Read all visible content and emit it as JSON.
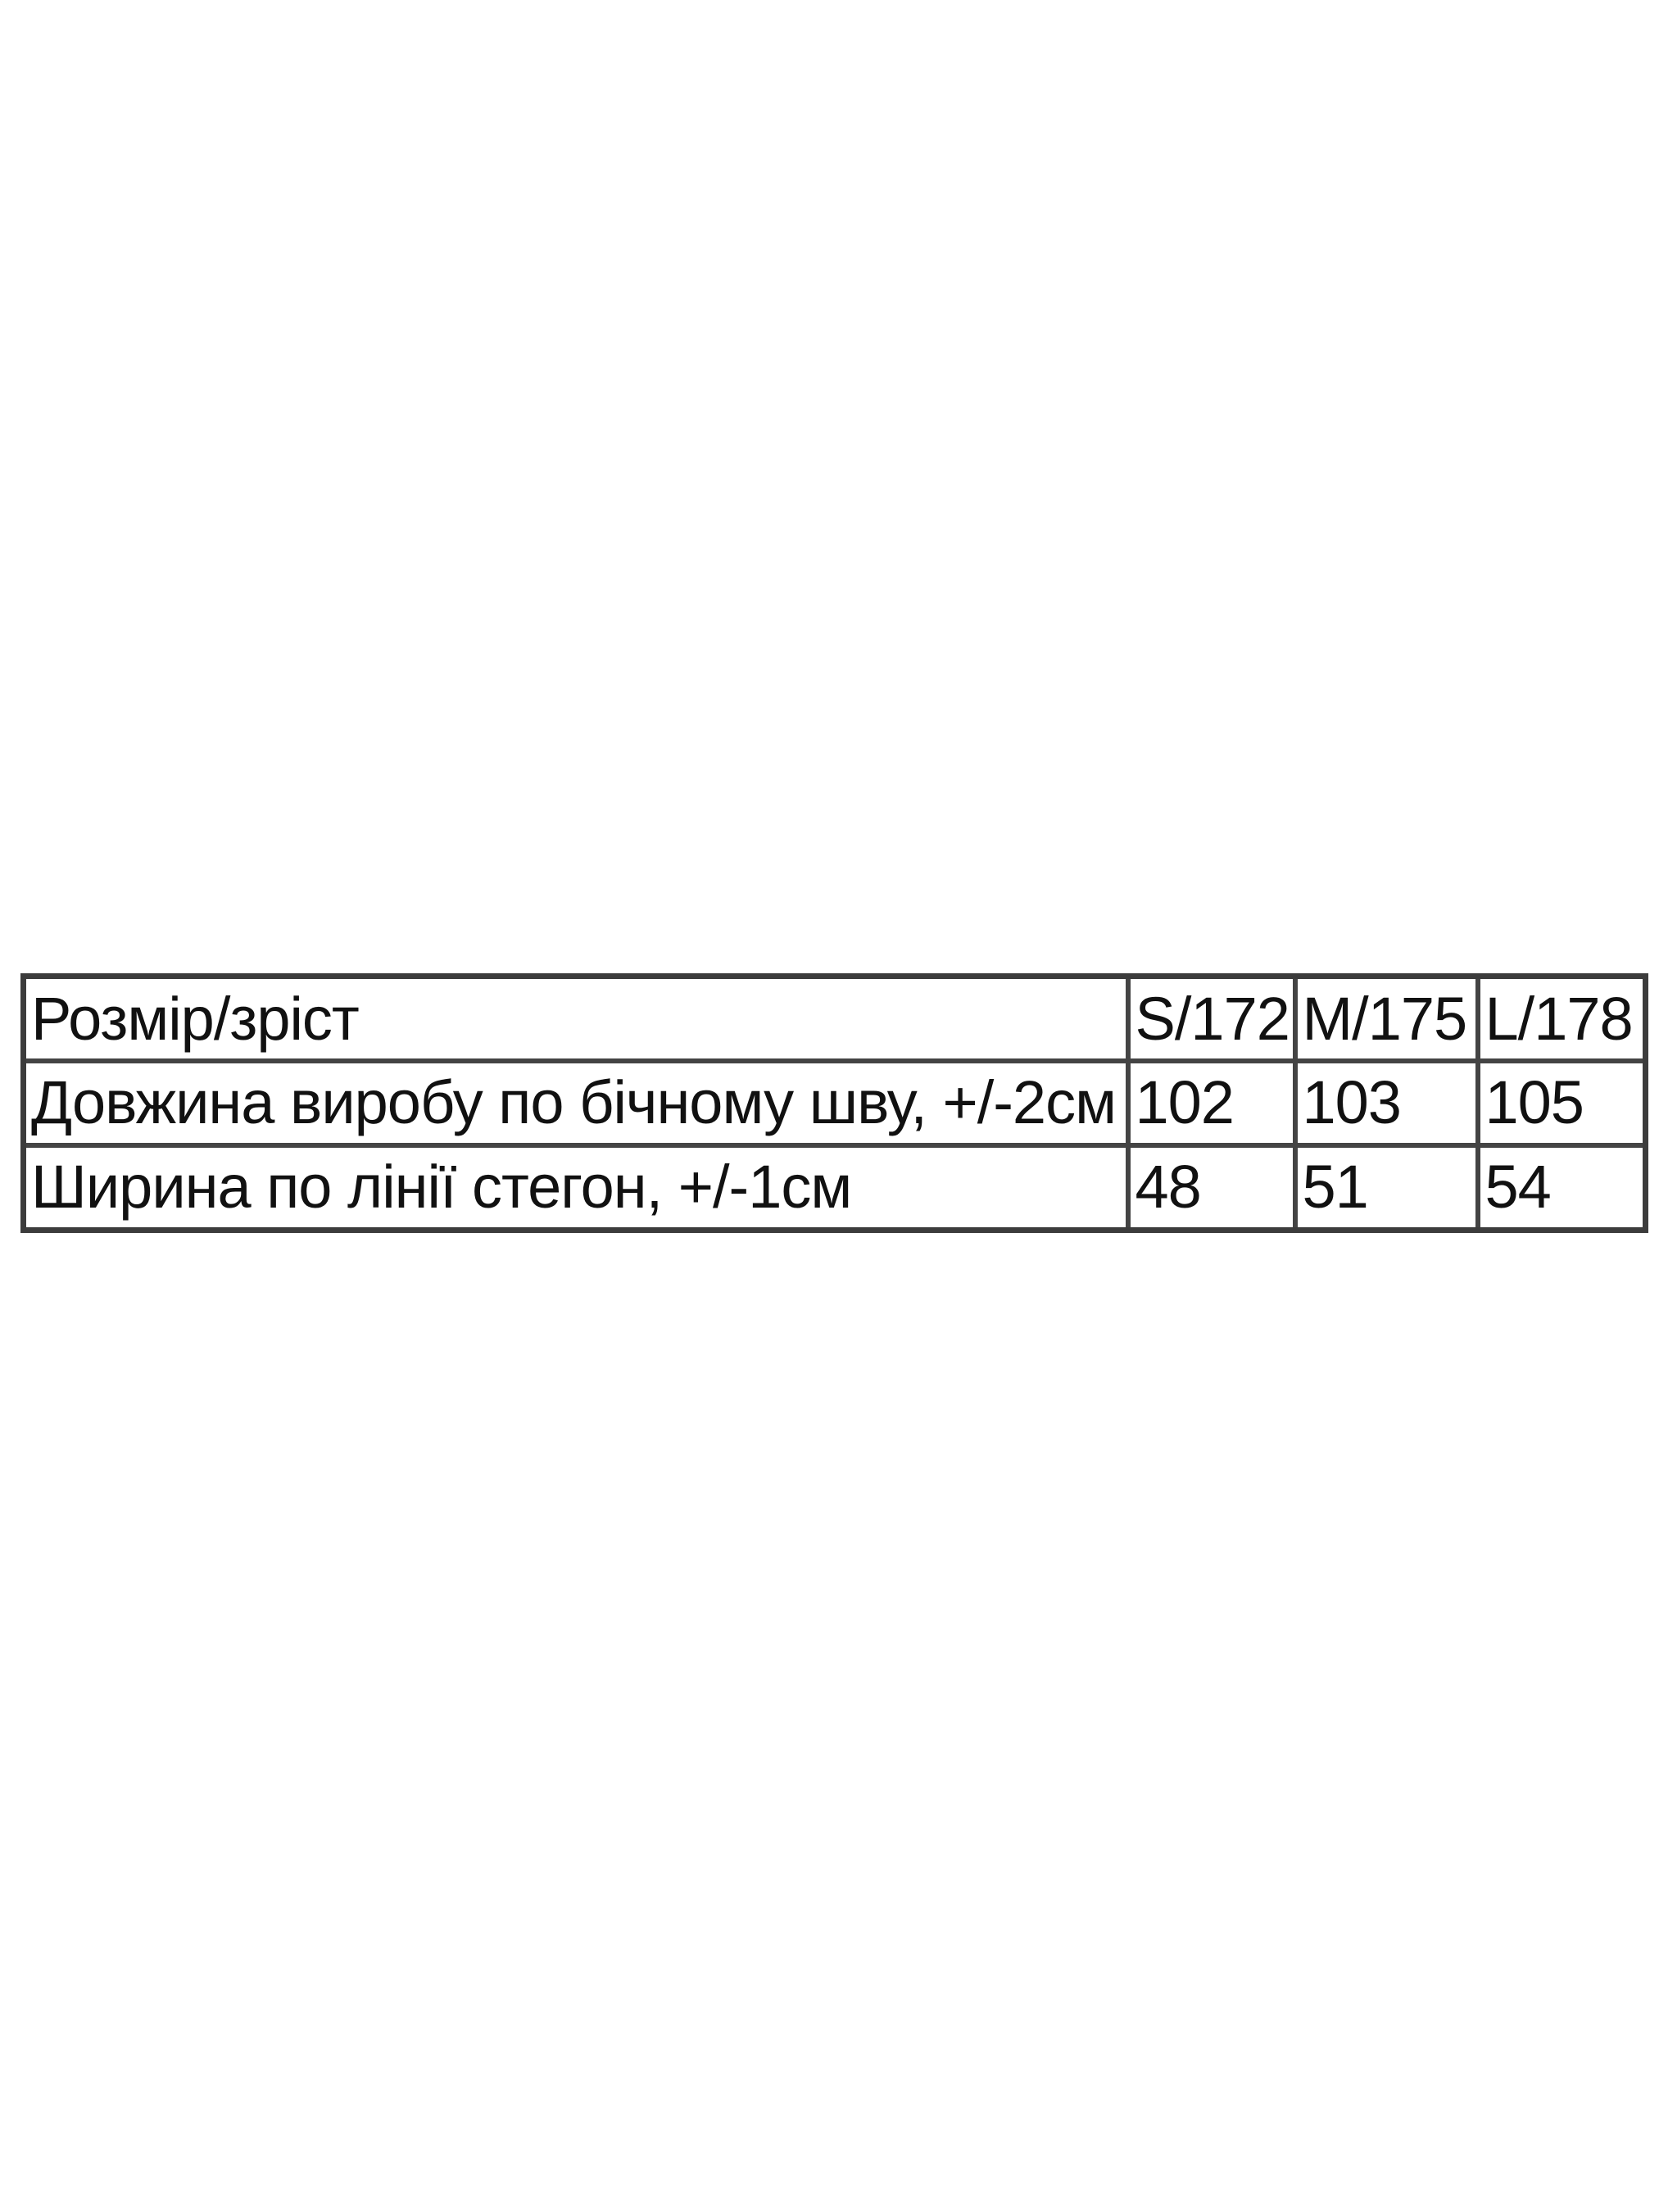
{
  "table": {
    "header": [
      "Розмір/зріст",
      "S/172",
      "M/175",
      "L/178"
    ],
    "rows": [
      [
        "Довжина виробу по бічному шву, +/-2см",
        "102",
        "103",
        "105"
      ],
      [
        "Ширина по лінії стегон, +/-1см",
        "48",
        "51",
        "54"
      ]
    ]
  }
}
